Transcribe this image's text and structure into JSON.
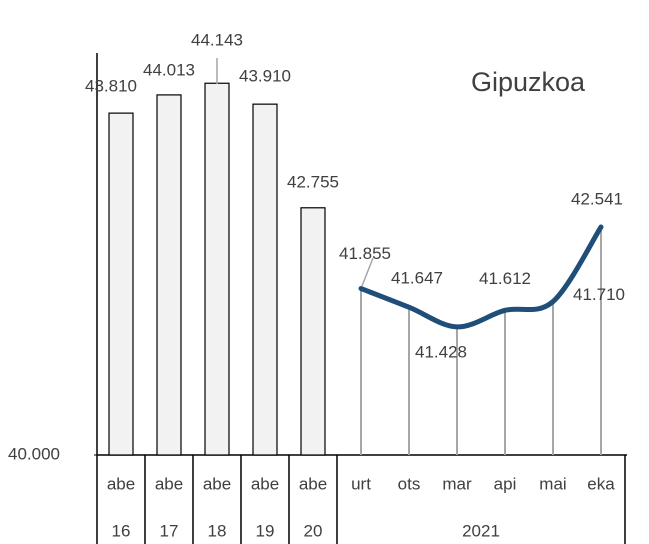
{
  "chart_data": {
    "type": "bar+line",
    "title": "Gipuzkoa",
    "categories": [
      "abe",
      "abe",
      "abe",
      "abe",
      "abe",
      "urt",
      "ots",
      "mar",
      "api",
      "mai",
      "eka"
    ],
    "category_groups": [
      {
        "label": "16",
        "span": 1
      },
      {
        "label": "17",
        "span": 1
      },
      {
        "label": "18",
        "span": 1
      },
      {
        "label": "19",
        "span": 1
      },
      {
        "label": "20",
        "span": 1
      },
      {
        "label": "2021",
        "span": 6
      }
    ],
    "series": [
      {
        "type": "bar",
        "color": "#f2f2f2",
        "values": [
          43810,
          44013,
          44143,
          43910,
          42755,
          null,
          null,
          null,
          null,
          null,
          null
        ],
        "value_labels": [
          "43.810",
          "44.013",
          "44.143",
          "43.910",
          "42.755",
          null,
          null,
          null,
          null,
          null,
          null
        ]
      },
      {
        "type": "line",
        "color": "#1f4e79",
        "values": [
          null,
          null,
          null,
          null,
          null,
          41855,
          41647,
          41428,
          41612,
          41710,
          42541
        ],
        "value_labels": [
          null,
          null,
          null,
          null,
          null,
          "41.855",
          "41.647",
          "41.428",
          "41.612",
          "41.710",
          "42.541"
        ]
      }
    ],
    "ylim": [
      40000,
      44480
    ],
    "yticks": [
      {
        "value": 40000,
        "label": "40.000"
      }
    ]
  }
}
